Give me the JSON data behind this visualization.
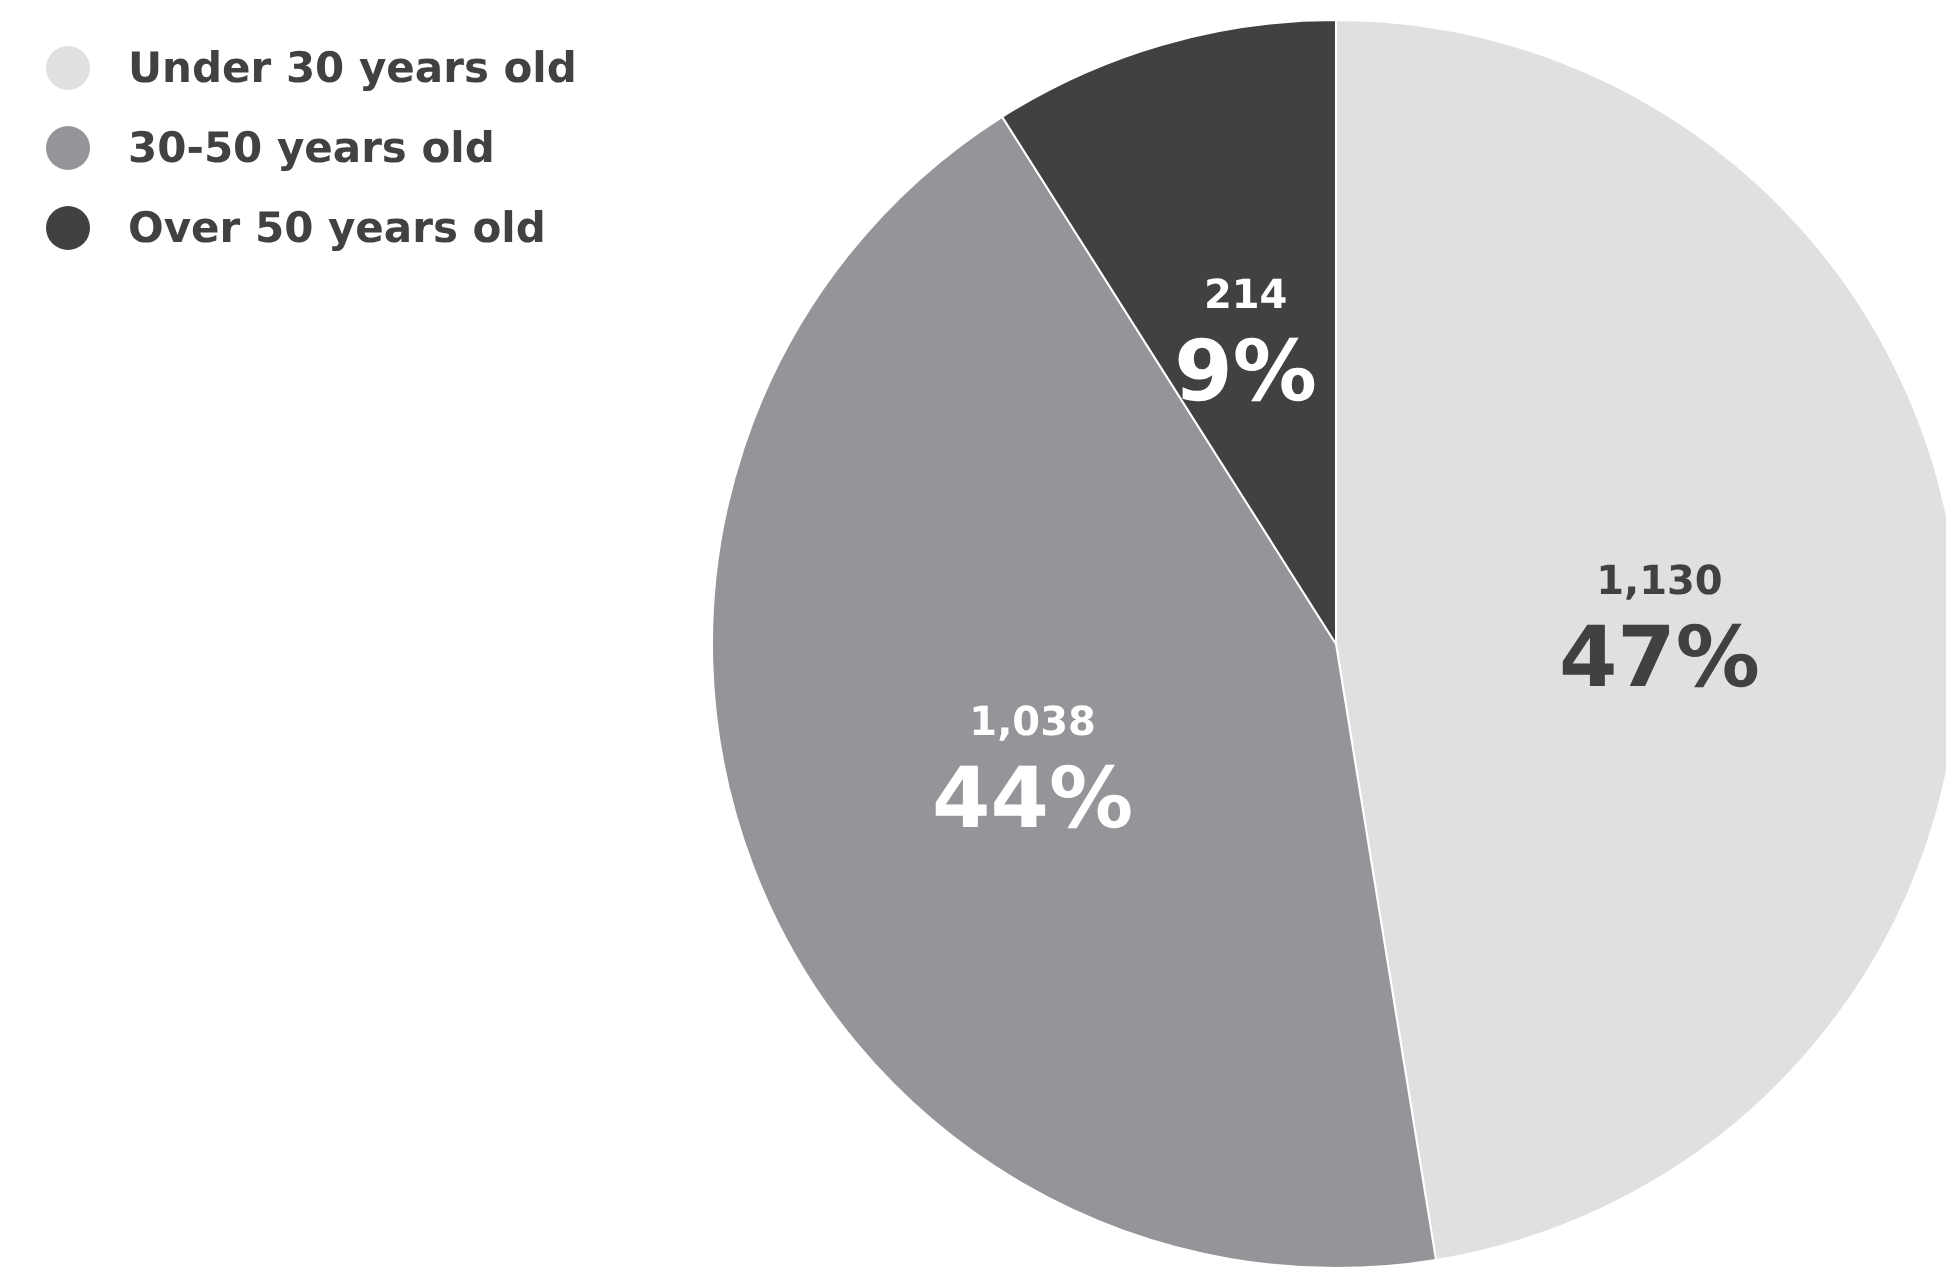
{
  "chart_data": {
    "type": "pie",
    "categories": [
      "Under 30 years old",
      "30-50 years old",
      "Over 50 years old"
    ],
    "values": [
      1130,
      1038,
      214
    ],
    "colors": [
      "#e0e0e2",
      "#939598",
      "#414042"
    ],
    "value_labels": [
      "1,130\n47%",
      "1,038\n44%",
      "214\n9%"
    ],
    "legend": "top left"
  }
}
